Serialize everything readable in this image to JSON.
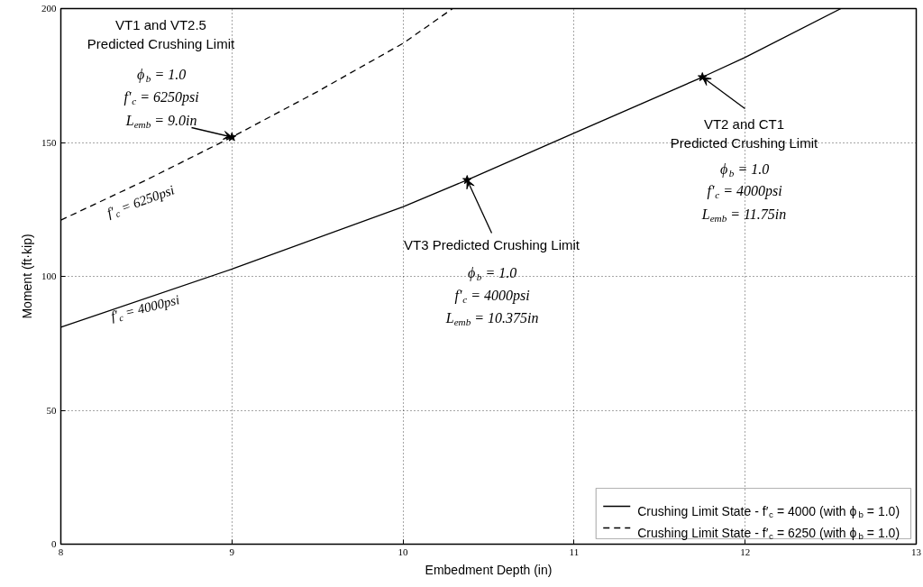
{
  "chart_data": {
    "type": "line",
    "xlabel": "Embedment Depth (in)",
    "ylabel": "Moment (ft·kip)",
    "xlim": [
      8,
      13
    ],
    "ylim": [
      0,
      200
    ],
    "xticks": [
      8,
      9,
      10,
      11,
      12,
      13
    ],
    "yticks": [
      0,
      50,
      100,
      150,
      200
    ],
    "grid": true,
    "legend": "bottom right",
    "series": [
      {
        "name": "Crushing Limit State - f′$_{c}$ = 4000 (with ϕ$_{b}$ = 1.0)",
        "color": "#000000",
        "line_style": "solid",
        "x": [
          8,
          9,
          10,
          10.375,
          11,
          11.75,
          12,
          12.56
        ],
        "values": [
          81,
          102.7,
          126,
          136,
          153.5,
          174.4,
          181.8,
          200
        ]
      },
      {
        "name": "Crushing Limit State - f′$_{c}$ = 6250 (with ϕ$_{b}$ = 1.0)",
        "color": "#000000",
        "line_style": "dashed",
        "x": [
          8,
          8.5,
          9,
          9.5,
          10,
          10.29
        ],
        "values": [
          121,
          136,
          152,
          169,
          187,
          200
        ]
      }
    ],
    "annotations": [
      "VT1 and VT2.5\nPredicted Crushing Limit",
      "ϕ$_{b}$ = 1.0",
      "f′$_{c}$ = 6250psi",
      {
        "text": "L$_{emb}$ = 9.0in",
        "x": 9,
        "y": 152
      },
      {
        "text": "VT3 Predicted Crushing Limit",
        "x": 10.375,
        "y": 136
      },
      "ϕ$_{b}$ = 1.0",
      "f′$_{c}$ = 4000psi",
      "L$_{emb}$ = 10.375in",
      {
        "text": "VT2 and CT1\nPredicted Crushing Limit",
        "x": 11.75,
        "y": 174.4
      },
      "ϕ$_{b}$ = 1.0",
      "f′$_{c}$ = 4000psi",
      "L$_{emb}$ = 11.75in",
      "f′$_{c}$ = 6250psi",
      "f′$_{c}$ = 4000psi"
    ]
  }
}
